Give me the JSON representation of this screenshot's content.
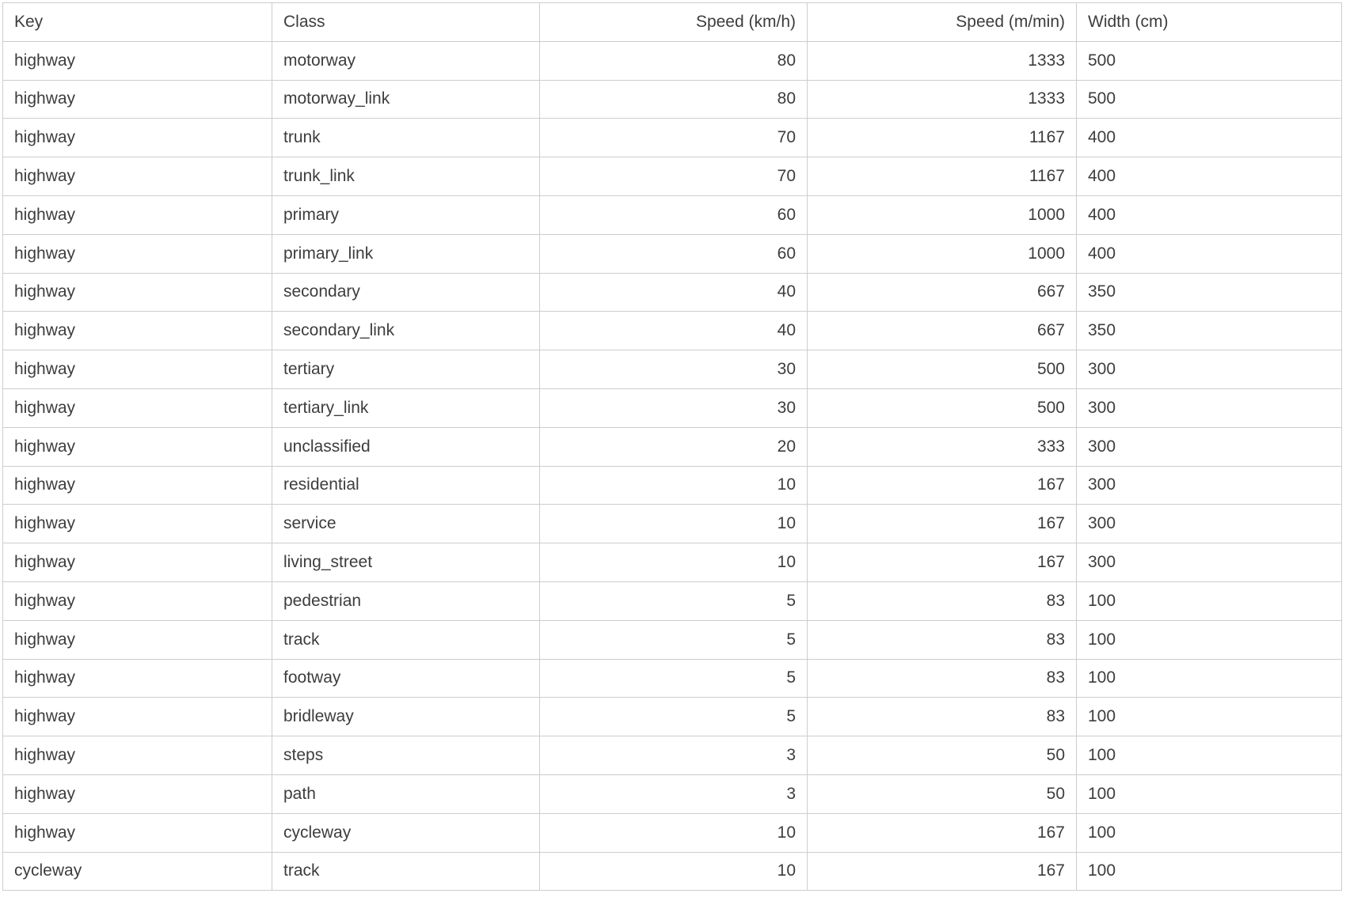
{
  "colors": {
    "text": "#3d3d3d",
    "border": "#cdcdcd",
    "background": "#ffffff"
  },
  "table": {
    "columns": [
      {
        "id": "key",
        "label": "Key",
        "align": "left"
      },
      {
        "id": "class",
        "label": "Class",
        "align": "left"
      },
      {
        "id": "speed-kmh",
        "label": "Speed (km/h)",
        "align": "right"
      },
      {
        "id": "speed-mmin",
        "label": "Speed (m/min)",
        "align": "right"
      },
      {
        "id": "width-cm",
        "label": "Width (cm)",
        "align": "left"
      }
    ],
    "rows": [
      [
        "highway",
        "motorway",
        "80",
        "1333",
        "500"
      ],
      [
        "highway",
        "motorway_link",
        "80",
        "1333",
        "500"
      ],
      [
        "highway",
        "trunk",
        "70",
        "1167",
        "400"
      ],
      [
        "highway",
        "trunk_link",
        "70",
        "1167",
        "400"
      ],
      [
        "highway",
        "primary",
        "60",
        "1000",
        "400"
      ],
      [
        "highway",
        "primary_link",
        "60",
        "1000",
        "400"
      ],
      [
        "highway",
        "secondary",
        "40",
        "667",
        "350"
      ],
      [
        "highway",
        "secondary_link",
        "40",
        "667",
        "350"
      ],
      [
        "highway",
        "tertiary",
        "30",
        "500",
        "300"
      ],
      [
        "highway",
        "tertiary_link",
        "30",
        "500",
        "300"
      ],
      [
        "highway",
        "unclassified",
        "20",
        "333",
        "300"
      ],
      [
        "highway",
        "residential",
        "10",
        "167",
        "300"
      ],
      [
        "highway",
        "service",
        "10",
        "167",
        "300"
      ],
      [
        "highway",
        "living_street",
        "10",
        "167",
        "300"
      ],
      [
        "highway",
        "pedestrian",
        "5",
        "83",
        "100"
      ],
      [
        "highway",
        "track",
        "5",
        "83",
        "100"
      ],
      [
        "highway",
        "footway",
        "5",
        "83",
        "100"
      ],
      [
        "highway",
        "bridleway",
        "5",
        "83",
        "100"
      ],
      [
        "highway",
        "steps",
        "3",
        "50",
        "100"
      ],
      [
        "highway",
        "path",
        "3",
        "50",
        "100"
      ],
      [
        "highway",
        "cycleway",
        "10",
        "167",
        "100"
      ],
      [
        "cycleway",
        "track",
        "10",
        "167",
        "100"
      ]
    ]
  }
}
